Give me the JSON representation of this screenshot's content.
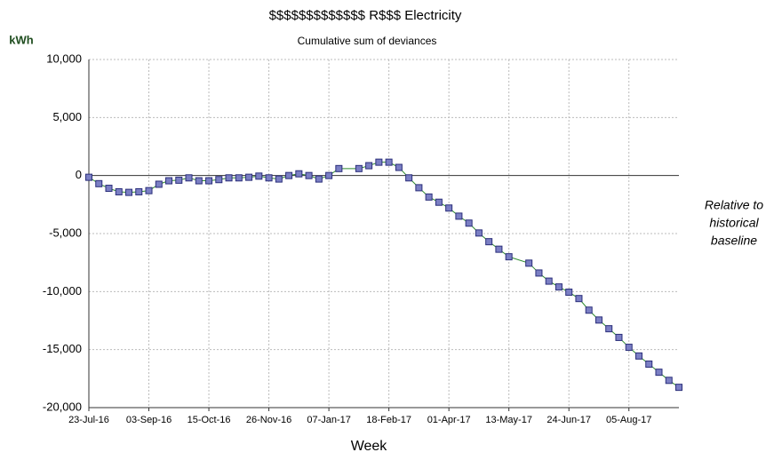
{
  "chart_data": {
    "type": "line",
    "title": "$$$$$$$$$$$$$ R$$$ Electricity",
    "subtitle": "Cumulative sum of deviances",
    "y_label": "kWh",
    "x_label": "Week",
    "annotation": [
      "Relative to",
      "historical",
      "baseline"
    ],
    "x": [
      "23-Jul-16",
      "30-Jul-16",
      "06-Aug-16",
      "13-Aug-16",
      "20-Aug-16",
      "27-Aug-16",
      "03-Sep-16",
      "10-Sep-16",
      "17-Sep-16",
      "24-Sep-16",
      "01-Oct-16",
      "08-Oct-16",
      "15-Oct-16",
      "22-Oct-16",
      "29-Oct-16",
      "05-Nov-16",
      "12-Nov-16",
      "19-Nov-16",
      "26-Nov-16",
      "03-Dec-16",
      "10-Dec-16",
      "17-Dec-16",
      "24-Dec-16",
      "31-Dec-16",
      "07-Jan-17",
      "14-Jan-17",
      "28-Jan-17",
      "04-Feb-17",
      "11-Feb-17",
      "18-Feb-17",
      "25-Feb-17",
      "04-Mar-17",
      "11-Mar-17",
      "18-Mar-17",
      "25-Mar-17",
      "01-Apr-17",
      "08-Apr-17",
      "15-Apr-17",
      "22-Apr-17",
      "29-Apr-17",
      "06-May-17",
      "13-May-17",
      "27-May-17",
      "03-Jun-17",
      "10-Jun-17",
      "17-Jun-17",
      "24-Jun-17",
      "01-Jul-17",
      "08-Jul-17",
      "15-Jul-17",
      "22-Jul-17",
      "29-Jul-17",
      "05-Aug-17",
      "12-Aug-17",
      "19-Aug-17",
      "26-Aug-17",
      "02-Sep-17",
      "09-Sep-17"
    ],
    "series": [
      {
        "color": "#2e8b2e",
        "marker_color": "#7b7fc4",
        "values": [
          -150,
          -700,
          -1100,
          -1400,
          -1450,
          -1400,
          -1300,
          -750,
          -450,
          -400,
          -200,
          -450,
          -450,
          -350,
          -200,
          -200,
          -150,
          -50,
          -200,
          -300,
          0,
          150,
          0,
          -300,
          0,
          600,
          600,
          850,
          1150,
          1150,
          700,
          -200,
          -1050,
          -1850,
          -2300,
          -2800,
          -3500,
          -4100,
          -4950,
          -5700,
          -6350,
          -7000,
          -7550,
          -8400,
          -9100,
          -9600,
          -10050,
          -10600,
          -11600,
          -12450,
          -13200,
          -13950,
          -14800,
          -15550,
          -16250,
          -16950,
          -17650,
          -18250
        ]
      }
    ],
    "xlim": [
      "23-Jul-16",
      "09-Sep-17"
    ],
    "xticks": [
      "23-Jul-16",
      "03-Sep-16",
      "15-Oct-16",
      "26-Nov-16",
      "07-Jan-17",
      "18-Feb-17",
      "01-Apr-17",
      "13-May-17",
      "24-Jun-17",
      "05-Aug-17"
    ],
    "ylim": [
      -20000,
      10000
    ],
    "yticks": [
      {
        "value": -20000,
        "label": "-20,000"
      },
      {
        "value": -15000,
        "label": "-15,000"
      },
      {
        "value": -10000,
        "label": "-10,000"
      },
      {
        "value": -5000,
        "label": "-5,000"
      },
      0,
      {
        "value": 5000,
        "label": "5,000"
      },
      {
        "value": 10000,
        "label": "10,000"
      }
    ],
    "grid": true
  }
}
